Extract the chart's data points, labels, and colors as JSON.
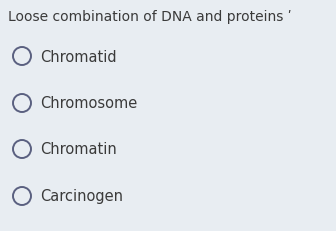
{
  "title": "Loose combination of DNA and proteins ʹ",
  "title_fontsize": 10.0,
  "title_color": "#3a3a3a",
  "background_color": "#e8edf2",
  "options": [
    "Chromatid",
    "Chromosome",
    "Chromatin",
    "Carcinogen"
  ],
  "circle_color": "#5a6080",
  "circle_linewidth": 1.4,
  "text_fontsize": 10.5,
  "text_color": "#3a3a3a"
}
